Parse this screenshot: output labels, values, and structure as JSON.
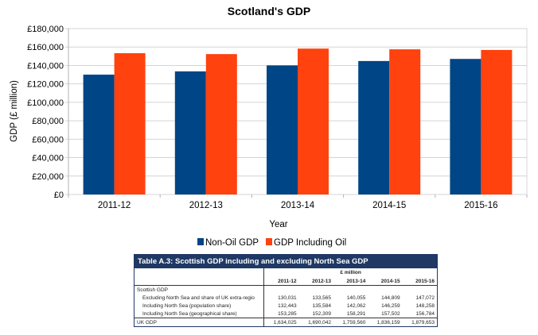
{
  "chart_data": {
    "type": "bar",
    "title": "Scotland's GDP",
    "xlabel": "Year",
    "ylabel": "GDP (£ million)",
    "categories": [
      "2011-12",
      "2012-13",
      "2013-14",
      "2014-15",
      "2015-16"
    ],
    "ylim": [
      0,
      180000
    ],
    "yticks": [
      "£0",
      "£20,000",
      "£40,000",
      "£60,000",
      "£80,000",
      "£100,000",
      "£120,000",
      "£140,000",
      "£160,000",
      "£180,000"
    ],
    "grid": true,
    "legend_position": "bottom",
    "series": [
      {
        "name": "Non-Oil GDP",
        "color": "#004586",
        "values": [
          130031,
          133565,
          140055,
          144809,
          147072
        ]
      },
      {
        "name": "GDP Including Oil",
        "color": "#ff420e",
        "values": [
          153285,
          152309,
          158291,
          157502,
          156784
        ]
      }
    ]
  },
  "table": {
    "title": "Table A.3: Scottish GDP including and excluding North Sea GDP",
    "unit": "£ million",
    "years": [
      "2011-12",
      "2012-13",
      "2013-14",
      "2014-15",
      "2015-16"
    ],
    "section": "Scottish GDP",
    "rows": [
      {
        "label": "Excluding North Sea and share of UK extra-regio",
        "values": [
          "130,031",
          "133,565",
          "140,055",
          "144,809",
          "147,072"
        ]
      },
      {
        "label": "Including North Sea (population share)",
        "values": [
          "132,443",
          "135,584",
          "142,062",
          "146,259",
          "148,258"
        ]
      },
      {
        "label": "Including North Sea (geographical share)",
        "values": [
          "153,285",
          "152,309",
          "158,291",
          "157,502",
          "156,784"
        ]
      }
    ],
    "uk": {
      "label": "UK GDP",
      "values": [
        "1,634,025",
        "1,690,042",
        "1,759,560",
        "1,836,159",
        "1,879,653"
      ]
    }
  }
}
